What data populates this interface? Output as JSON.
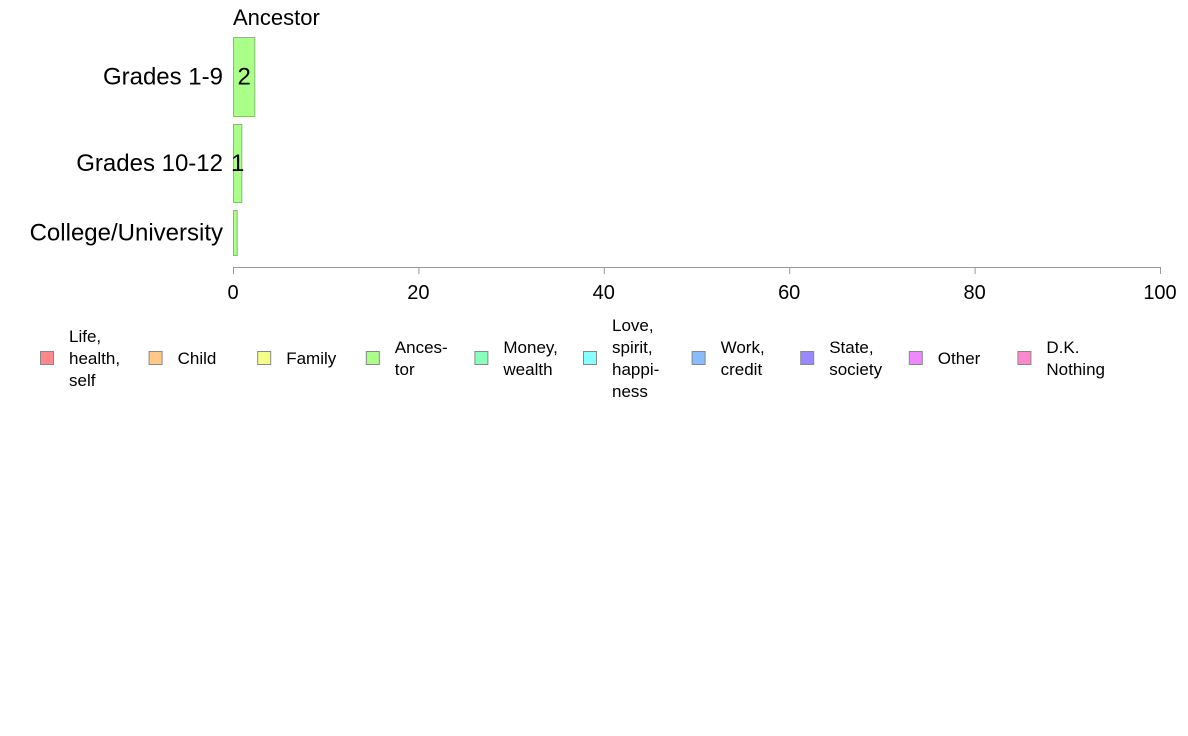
{
  "chart_data": {
    "type": "bar",
    "orientation": "horizontal",
    "title": "Ancestor",
    "categories": [
      "Grades 1-9",
      "Grades 10-12",
      "College/University"
    ],
    "values": [
      2.3,
      0.9,
      0.4
    ],
    "data_labels": [
      "2",
      "1",
      ""
    ],
    "xlim": [
      0,
      100
    ],
    "xticks": [
      "0",
      "20",
      "40",
      "60",
      "80",
      "100"
    ],
    "grid": false,
    "bar_color": "#aaff88",
    "bar_stroke": "#88bb77",
    "legend": {
      "position": "bottom",
      "items": [
        {
          "label": [
            "Life,",
            "health,",
            "self"
          ],
          "color": "#ff8888"
        },
        {
          "label": [
            "Child"
          ],
          "color": "#ffc888"
        },
        {
          "label": [
            "Family"
          ],
          "color": "#f4ff88"
        },
        {
          "label": [
            "Ances-",
            "tor"
          ],
          "color": "#aaff88"
        },
        {
          "label": [
            "Money,",
            "wealth"
          ],
          "color": "#88ffbb"
        },
        {
          "label": [
            "Love,",
            "spirit,",
            "happi-",
            "ness"
          ],
          "color": "#88ffff"
        },
        {
          "label": [
            "Work,",
            "credit"
          ],
          "color": "#88bbff"
        },
        {
          "label": [
            "State,",
            "society"
          ],
          "color": "#9988ff"
        },
        {
          "label": [
            "Other"
          ],
          "color": "#ee88ff"
        },
        {
          "label": [
            "D.K.",
            "Nothing"
          ],
          "color": "#ff88cc"
        }
      ]
    }
  }
}
